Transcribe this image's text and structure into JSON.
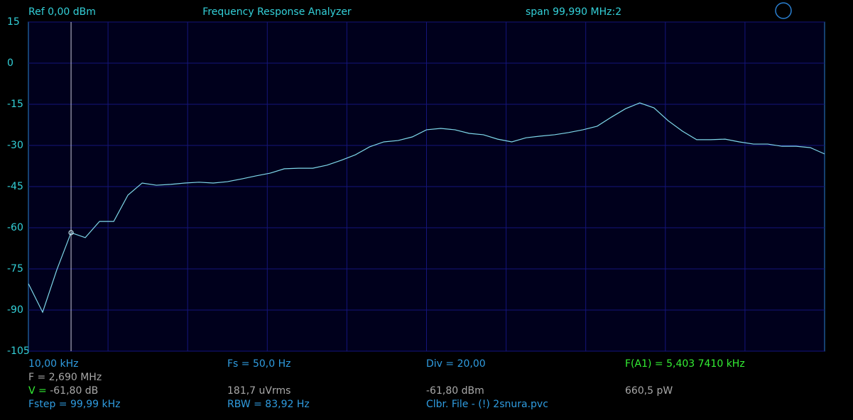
{
  "header": {
    "ref": "Ref  0,00 dBm",
    "title": "Frequency Response Analyzer",
    "span": "span 99,990 MHz:2"
  },
  "chart_data": {
    "type": "line",
    "color": "#7fd8ea",
    "grid": true,
    "ylim": [
      -105,
      15
    ],
    "yticks": [
      15,
      0,
      -15,
      -30,
      -45,
      -60,
      -75,
      -90,
      -105
    ],
    "values": [
      -80.4,
      -90.8,
      -75.3,
      -61.8,
      -63.6,
      -57.7,
      -57.7,
      -48.1,
      -43.7,
      -44.5,
      -44.2,
      -43.7,
      -43.4,
      -43.7,
      -43.2,
      -42.2,
      -41.1,
      -40.1,
      -38.5,
      -38.3,
      -38.3,
      -37.2,
      -35.4,
      -33.4,
      -30.5,
      -28.7,
      -28.2,
      -26.9,
      -24.3,
      -23.8,
      -24.3,
      -25.6,
      -26.1,
      -27.7,
      -28.7,
      -27.2,
      -26.6,
      -26.1,
      -25.3,
      -24.3,
      -23.0,
      -19.7,
      -16.6,
      -14.5,
      -16.3,
      -21.0,
      -24.8,
      -27.9,
      -27.9,
      -27.7,
      -28.7,
      -29.5,
      -29.5,
      -30.3,
      -30.3,
      -30.8,
      -33.1
    ]
  },
  "footer": {
    "col1": {
      "start": "10,00 kHz",
      "freq": "F = 2,690 MHz",
      "v_label": "V = ",
      "v_value": "-61,80 dB",
      "fstep": "Fstep = 99,99 kHz"
    },
    "col2": {
      "fs": "Fs = 50,0 Hz",
      "rms": "181,7 uVrms",
      "rbw": "RBW = 83,92 Hz"
    },
    "col3": {
      "div": "Div = 20,00",
      "dbm": "-61,80 dBm",
      "file": "Clbr. File - (!) 2snura.pvc"
    },
    "col4": {
      "fa1": "F(A1) = 5,403 7410 kHz",
      "power": "660,5 pW"
    }
  }
}
